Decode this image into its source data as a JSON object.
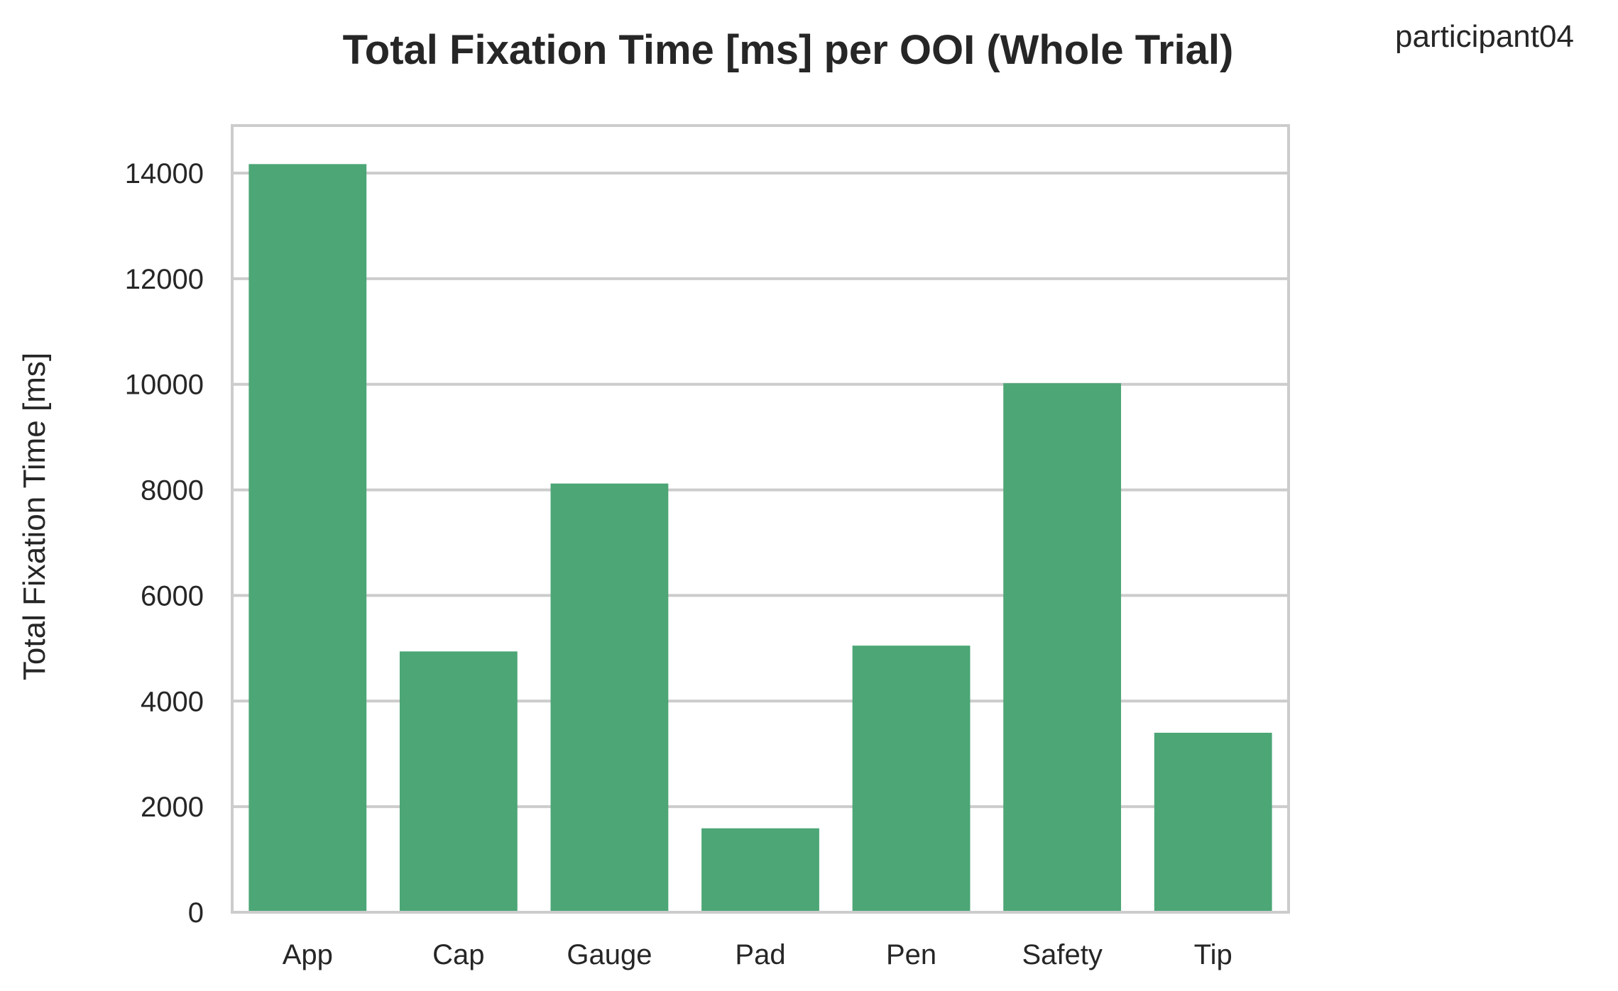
{
  "chart_data": {
    "type": "bar",
    "title": "Total Fixation Time [ms] per OOI (Whole Trial)",
    "annotation": "participant04",
    "xlabel": "",
    "ylabel": "Total Fixation Time [ms]",
    "categories": [
      "App",
      "Cap",
      "Gauge",
      "Pad",
      "Pen",
      "Safety",
      "Tip"
    ],
    "values": [
      14170,
      4940,
      8120,
      1590,
      5050,
      10020,
      3400
    ],
    "ylim": [
      0,
      14900
    ],
    "yticks": [
      0,
      2000,
      4000,
      6000,
      8000,
      10000,
      12000,
      14000
    ],
    "bar_color": "#4ca676",
    "grid": true
  }
}
